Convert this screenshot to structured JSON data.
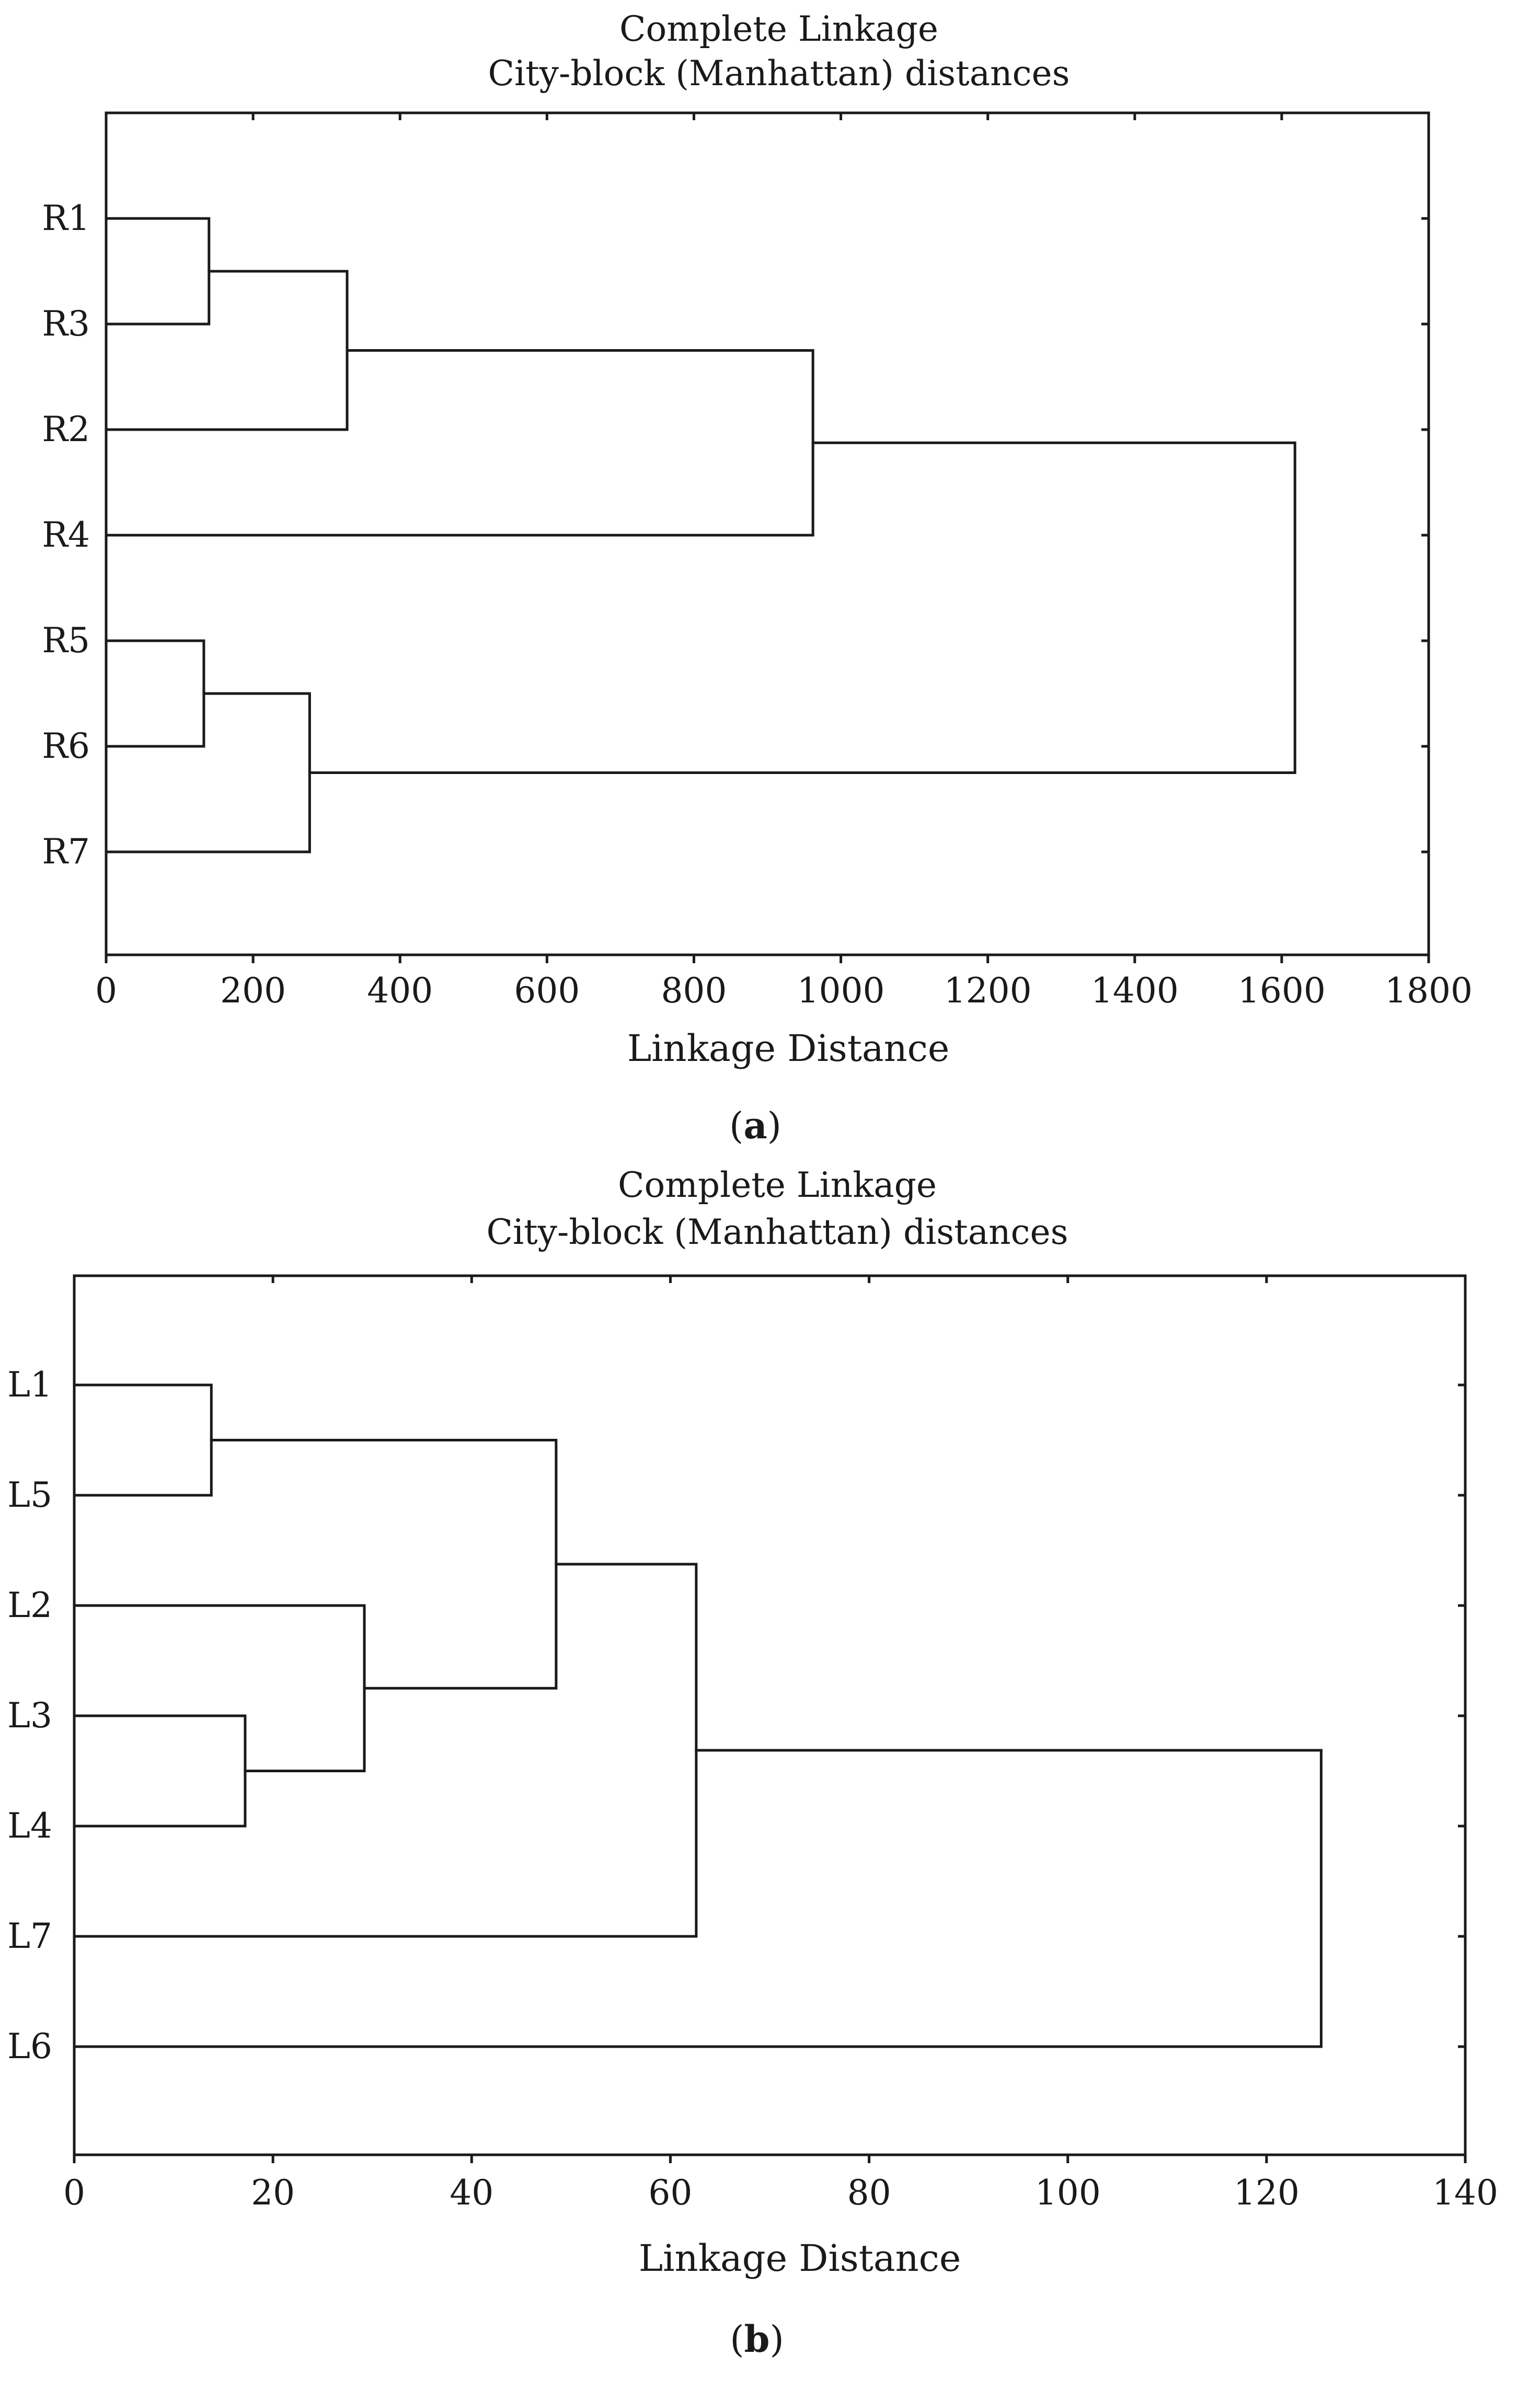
{
  "chart_data": [
    {
      "type": "dendrogram",
      "title": "Complete Linkage",
      "subtitle": "City-block (Manhattan) distances",
      "xlabel": "Linkage Distance",
      "caption_letter": "a",
      "xlim": [
        0,
        1800
      ],
      "xticks": [
        "0",
        "200",
        "400",
        "600",
        "800",
        "1000",
        "1200",
        "1400",
        "1600",
        "1800"
      ],
      "leaves": [
        "R1",
        "R3",
        "R2",
        "R4",
        "R5",
        "R6",
        "R7"
      ],
      "merges": [
        {
          "children": [
            "R1",
            "R3"
          ],
          "distance": 140
        },
        {
          "children": [
            "R5",
            "R6"
          ],
          "distance": 133
        },
        {
          "children": [
            [
              "R1",
              "R3"
            ],
            "R2"
          ],
          "distance": 328
        },
        {
          "children": [
            [
              "R5",
              "R6"
            ],
            "R7"
          ],
          "distance": 277
        },
        {
          "children": [
            [
              [
                "R1",
                "R3"
              ],
              "R2"
            ],
            "R4"
          ],
          "distance": 962
        },
        {
          "children": [
            [
              [
                [
                  "R1",
                  "R3"
                ],
                "R2"
              ],
              "R4"
            ],
            [
              [
                "R5",
                "R6"
              ],
              "R7"
            ]
          ],
          "distance": 1618
        }
      ]
    },
    {
      "type": "dendrogram",
      "title": "Complete Linkage",
      "subtitle": "City-block (Manhattan) distances",
      "xlabel": "Linkage Distance",
      "caption_letter": "b",
      "xlim": [
        0,
        140
      ],
      "xticks": [
        "0",
        "20",
        "40",
        "60",
        "80",
        "100",
        "120",
        "140"
      ],
      "leaves": [
        "L1",
        "L5",
        "L2",
        "L3",
        "L4",
        "L7",
        "L6"
      ],
      "merges": [
        {
          "children": [
            "L1",
            "L5"
          ],
          "distance": 13.8
        },
        {
          "children": [
            "L3",
            "L4"
          ],
          "distance": 17.2
        },
        {
          "children": [
            "L2",
            [
              "L3",
              "L4"
            ]
          ],
          "distance": 29.2
        },
        {
          "children": [
            [
              "L1",
              "L5"
            ],
            [
              "L2",
              [
                "L3",
                "L4"
              ]
            ]
          ],
          "distance": 48.5
        },
        {
          "children": [
            [
              [
                "L1",
                "L5"
              ],
              [
                "L2",
                [
                  "L3",
                  "L4"
                ]
              ]
            ],
            "L7"
          ],
          "distance": 62.6
        },
        {
          "children": [
            [
              [
                [
                  "L1",
                  "L5"
                ],
                [
                  "L2",
                  [
                    "L3",
                    "L4"
                  ]
                ]
              ],
              "L7"
            ],
            "L6"
          ],
          "distance": 125.5
        }
      ]
    }
  ]
}
